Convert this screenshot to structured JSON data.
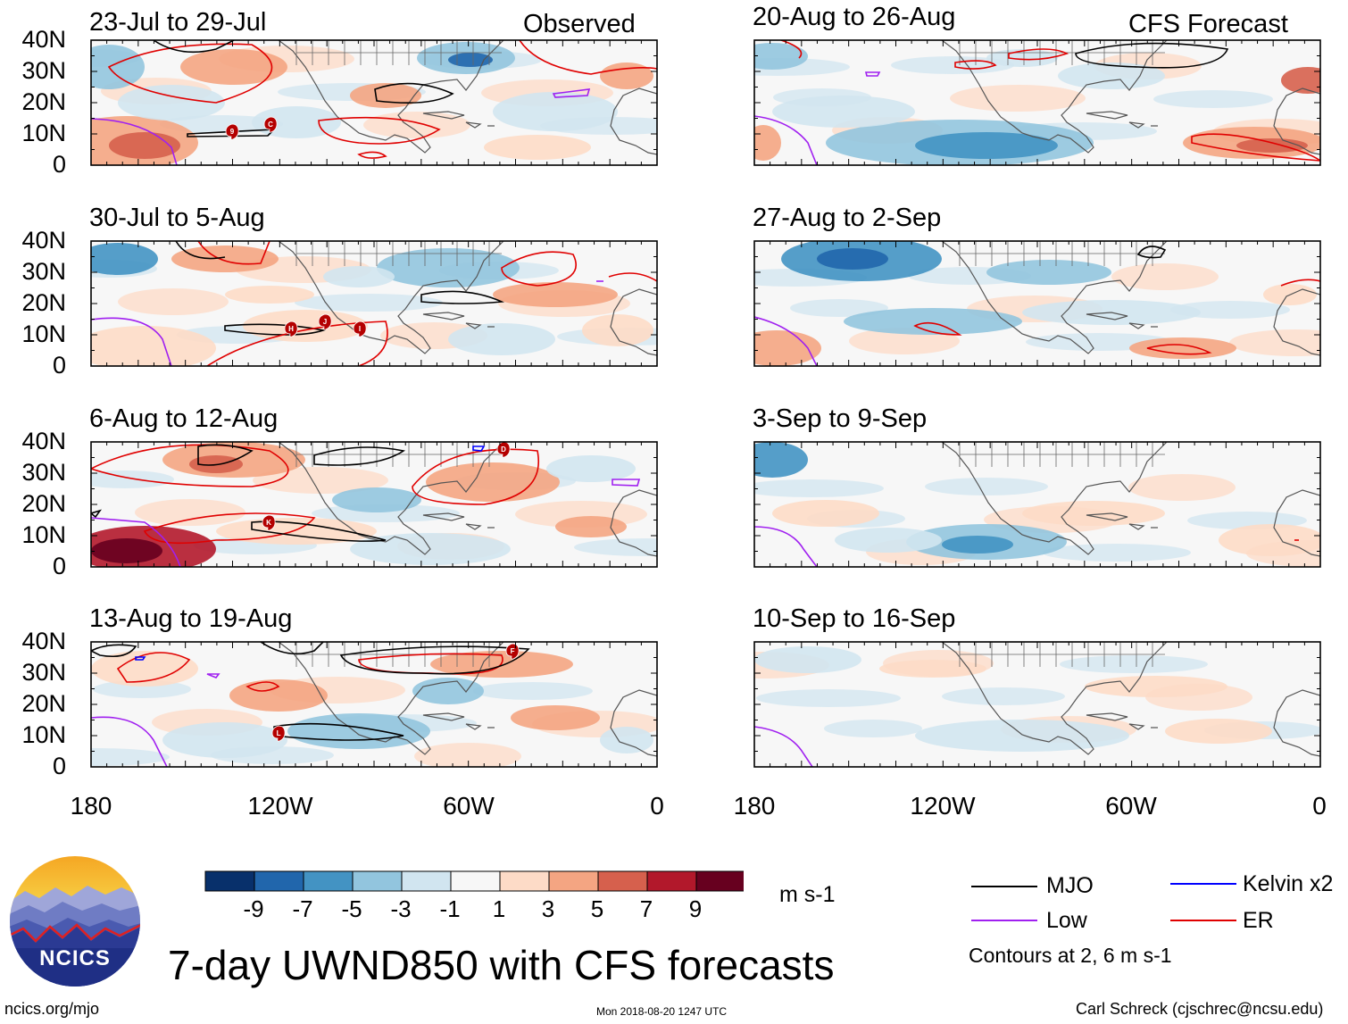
{
  "colors": {
    "mjo": "#000000",
    "low": "#a020f0",
    "kelvin": "#0000ff",
    "er": "#e00000",
    "land_outline": "#555555",
    "scale": [
      "#08306b",
      "#2166ac",
      "#4393c3",
      "#92c5de",
      "#d1e5f0",
      "#f7f7f7",
      "#fddbc7",
      "#f4a582",
      "#d6604d",
      "#b2182b",
      "#67001f"
    ]
  },
  "observed_label": "Observed",
  "forecast_label": "CFS Forecast",
  "y_ticks": [
    "40N",
    "30N",
    "20N",
    "10N",
    "0"
  ],
  "x_ticks": [
    "180",
    "120W",
    "60W",
    "0"
  ],
  "panels_left": [
    {
      "title": "23-Jul to 29-Jul",
      "storms": [
        "9",
        "C"
      ]
    },
    {
      "title": "30-Jul to 5-Aug",
      "storms": [
        "H",
        "J",
        "I"
      ]
    },
    {
      "title": "6-Aug to 12-Aug",
      "storms": [
        "K",
        "D"
      ]
    },
    {
      "title": "13-Aug to 19-Aug",
      "storms": [
        "L",
        "F"
      ]
    }
  ],
  "panels_right": [
    {
      "title": "20-Aug to 26-Aug"
    },
    {
      "title": "27-Aug to 2-Sep"
    },
    {
      "title": "3-Sep to 9-Sep"
    },
    {
      "title": "10-Sep to 16-Sep"
    }
  ],
  "colorbar": {
    "labels": [
      "-9",
      "-7",
      "-5",
      "-3",
      "-1",
      "1",
      "3",
      "5",
      "7",
      "9"
    ],
    "units": "m s-1"
  },
  "legend": {
    "mjo": "MJO",
    "kelvin": "Kelvin x2",
    "low": "Low",
    "er": "ER",
    "note": "Contours at 2, 6 m s-1"
  },
  "logo": {
    "text": "NCICS"
  },
  "main_title": "7-day UWND850 with CFS forecasts",
  "footer": {
    "url": "ncics.org/mjo",
    "timestamp": "Mon 2018-08-20 1247 UTC",
    "credit": "Carl Schreck (cjschrec@ncsu.edu)"
  }
}
